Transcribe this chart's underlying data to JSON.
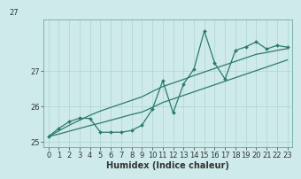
{
  "xlabel": "Humidex (Indice chaleur)",
  "bg_color": "#ceeaea",
  "line_color": "#2d7a6e",
  "grid_color": "#aed4d4",
  "x_data": [
    0,
    1,
    2,
    3,
    4,
    5,
    6,
    7,
    8,
    9,
    10,
    11,
    12,
    13,
    14,
    15,
    16,
    17,
    18,
    19,
    20,
    21,
    22,
    23
  ],
  "y_zigzag": [
    25.15,
    25.38,
    25.57,
    25.67,
    25.66,
    25.27,
    25.27,
    25.27,
    25.32,
    25.47,
    25.92,
    26.72,
    25.82,
    26.63,
    27.05,
    28.13,
    27.22,
    26.77,
    27.58,
    27.68,
    27.82,
    27.62,
    27.72,
    27.67
  ],
  "y_line1": [
    25.15,
    25.31,
    25.47,
    25.61,
    25.75,
    25.87,
    25.97,
    26.07,
    26.17,
    26.27,
    26.42,
    26.56,
    26.66,
    26.76,
    26.87,
    26.97,
    27.07,
    27.17,
    27.27,
    27.37,
    27.47,
    27.52,
    27.58,
    27.63
  ],
  "y_line2": [
    25.15,
    25.22,
    25.3,
    25.38,
    25.46,
    25.53,
    25.61,
    25.69,
    25.77,
    25.84,
    25.97,
    26.11,
    26.21,
    26.31,
    26.41,
    26.51,
    26.61,
    26.71,
    26.81,
    26.91,
    27.01,
    27.11,
    27.21,
    27.31
  ],
  "ylim": [
    24.85,
    28.45
  ],
  "xlim": [
    -0.5,
    23.5
  ],
  "yticks": [
    25,
    26,
    27
  ],
  "xticks": [
    0,
    1,
    2,
    3,
    4,
    5,
    6,
    7,
    8,
    9,
    10,
    11,
    12,
    13,
    14,
    15,
    16,
    17,
    18,
    19,
    20,
    21,
    22,
    23
  ],
  "top_label": "27",
  "fontsize_label": 7,
  "fontsize_tick": 6,
  "spine_color": "#5a9a9a"
}
